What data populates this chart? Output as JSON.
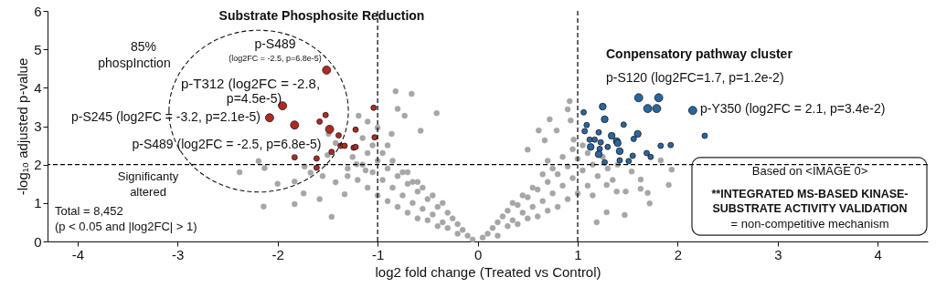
{
  "chart_data": {
    "type": "scatter",
    "xlabel": "log2 fold change (Treated vs Control)",
    "ylabel": "-log₁₀ adjusted p-value",
    "xlim": [
      -4.3,
      4.5
    ],
    "ylim": [
      0,
      6
    ],
    "xticks": [
      -4,
      -3,
      -2,
      -1,
      0,
      1,
      2,
      3,
      4
    ],
    "yticks": [
      0,
      1,
      2,
      3,
      4,
      5,
      6
    ],
    "grid": false,
    "marker": "circle",
    "ref_lines": [
      {
        "axis": "x",
        "value": -1,
        "color": "#000000",
        "line_style": "dashed"
      },
      {
        "axis": "x",
        "value": 1,
        "color": "#000000",
        "line_style": "dashed"
      },
      {
        "axis": "y",
        "value": 2,
        "color": "#000000",
        "line_style": "dashed"
      }
    ],
    "series": [
      {
        "type": "scatter",
        "color": "#a6a6a6",
        "x": [
          -0.82,
          -0.66,
          -0.8,
          -0.41,
          -0.73,
          -1.19,
          -1.1,
          -0.57,
          -1.0,
          -0.86,
          -1.15,
          -2.19,
          -2.38,
          -2.13,
          -2.0,
          -1.83,
          -2.14,
          -1.83,
          -1.74,
          -1.73,
          -1.67,
          -1.58,
          -1.46,
          -1.55,
          -1.5,
          -1.42,
          -1.33,
          -1.3,
          -1.21,
          -1.12,
          -1.49,
          -1.42,
          -0.05,
          -0.1,
          -0.15,
          -0.2,
          -0.2,
          -0.25,
          -0.3,
          -0.3,
          -0.35,
          -0.4,
          -0.4,
          -0.45,
          -0.5,
          -0.5,
          -0.55,
          -0.6,
          -0.6,
          -0.65,
          -0.7,
          -0.7,
          -0.75,
          -0.8,
          -0.8,
          -0.85,
          -0.9,
          -0.9,
          -0.95,
          -1.0,
          -1.0,
          -1.05,
          -1.1,
          -1.1,
          -1.15,
          -1.2,
          -1.25,
          -1.3,
          -0.35,
          -0.55,
          -0.75,
          -0.95,
          -0.85,
          -0.65,
          -0.45,
          -1.05,
          -0.7,
          -0.6,
          -0.9,
          1.29,
          1.47,
          1.19,
          1.29,
          1.91,
          1.72,
          1.63,
          1.94,
          1.7,
          1.39,
          1.54,
          1.63,
          1.48,
          1.83,
          0.92,
          0.72,
          0.93,
          0.61,
          0.79,
          0.5,
          0.67,
          0.9,
          0.96,
          0.05,
          0.1,
          0.15,
          0.2,
          0.2,
          0.25,
          0.3,
          0.3,
          0.35,
          0.4,
          0.4,
          0.45,
          0.5,
          0.5,
          0.55,
          0.6,
          0.6,
          0.65,
          0.7,
          0.7,
          0.75,
          0.8,
          0.8,
          0.85,
          0.9,
          0.9,
          0.95,
          1.0,
          1.0,
          1.05,
          1.1,
          1.1,
          1.15,
          1.2,
          1.25,
          1.3,
          0.35,
          0.55,
          0.75,
          0.95,
          0.85,
          0.65,
          0.45,
          1.05,
          0.7,
          1.15,
          1.35,
          1.4
        ],
        "values": [
          3.91,
          3.84,
          3.45,
          3.34,
          3.27,
          3.27,
          3.12,
          2.88,
          2.96,
          2.8,
          2.69,
          2.09,
          1.8,
          1.91,
          1.5,
          1.56,
          0.91,
          0.97,
          1.25,
          1.95,
          1.79,
          1.1,
          0.64,
          1.7,
          2.25,
          1.54,
          1.23,
          1.7,
          2.01,
          1.85,
          2.8,
          2.56,
          0.05,
          0.15,
          0.3,
          0.2,
          0.45,
          0.6,
          0.35,
          0.75,
          0.5,
          0.9,
          0.4,
          0.7,
          1.1,
          0.55,
          0.85,
          1.3,
          0.6,
          1.0,
          1.5,
          0.75,
          1.2,
          1.7,
          0.9,
          1.4,
          1.9,
          1.05,
          1.6,
          2.1,
          1.2,
          1.8,
          2.3,
          1.4,
          2.0,
          1.6,
          2.2,
          1.9,
          1.0,
          1.4,
          1.8,
          2.3,
          2.1,
          1.55,
          1.2,
          2.5,
          1.8,
          1.55,
          2.5,
          1.47,
          0.69,
          0.5,
          0.76,
          1.47,
          0.99,
          1.37,
          1.87,
          1.26,
          1.3,
          1.82,
          1.61,
          1.3,
          2.11,
          3.65,
          3.18,
          3.15,
          2.89,
          2.89,
          2.39,
          2.63,
          3.44,
          2.65,
          0.1,
          0.2,
          0.35,
          0.15,
          0.5,
          0.65,
          0.4,
          0.8,
          0.55,
          0.95,
          0.45,
          0.75,
          1.15,
          0.6,
          0.9,
          1.35,
          0.65,
          1.05,
          1.55,
          0.8,
          1.25,
          1.75,
          0.9,
          1.45,
          1.95,
          1.1,
          1.65,
          2.15,
          1.25,
          1.85,
          2.3,
          1.45,
          2.0,
          1.7,
          2.2,
          1.9,
          1.0,
          1.4,
          1.9,
          2.4,
          2.2,
          1.75,
          1.2,
          2.5,
          2.1,
          1.2,
          1.6,
          2.0
        ]
      },
      {
        "type": "bubble",
        "color": "#b02a22",
        "x": [
          -1.51,
          -1.95,
          -2.08,
          -1.83,
          -1.48,
          -1.04,
          -1.52,
          -1.58,
          -1.39,
          -1.22,
          -1.03,
          -1.37,
          -1.33,
          -1.24,
          -1.22,
          -1.46,
          -1.83,
          -1.61,
          -1.61
        ],
        "values": [
          4.46,
          3.53,
          3.22,
          3.03,
          2.92,
          3.48,
          3.29,
          3.12,
          2.76,
          2.91,
          2.71,
          2.49,
          2.49,
          2.44,
          2.46,
          2.33,
          2.19,
          2.16,
          1.92
        ],
        "sizes": [
          1,
          1,
          1,
          1,
          1,
          0.45,
          0.45,
          0.45,
          0.45,
          0.45,
          0.45,
          0.45,
          0.45,
          0.45,
          0.45,
          0.45,
          0.45,
          0.45,
          0.45
        ]
      },
      {
        "type": "bubble",
        "color": "#2a66a0",
        "x": [
          1.61,
          1.81,
          1.7,
          1.79,
          2.15,
          1.27,
          1.25,
          1.06,
          1.09,
          1.07,
          1.21,
          1.46,
          1.6,
          1.34,
          1.12,
          1.17,
          1.23,
          1.39,
          1.4,
          1.56,
          1.13,
          1.3,
          1.22,
          1.42,
          1.21,
          1.83,
          1.93,
          2.27,
          1.55,
          1.69,
          1.73,
          1.42,
          1.51,
          1.27
        ],
        "values": [
          3.74,
          3.74,
          3.46,
          3.46,
          3.41,
          3.18,
          3.51,
          3.36,
          3.03,
          2.87,
          2.84,
          3.04,
          2.8,
          2.75,
          2.65,
          2.65,
          2.58,
          2.61,
          2.56,
          2.67,
          2.46,
          2.46,
          2.41,
          2.35,
          2.27,
          2.49,
          2.51,
          2.75,
          2.23,
          2.3,
          2.2,
          2.11,
          2.09,
          2.06
        ],
        "sizes": [
          1,
          1,
          1,
          1,
          1,
          0.7,
          0.7,
          0.45,
          0.45,
          0.45,
          0.45,
          0.45,
          0.7,
          0.7,
          0.45,
          0.45,
          0.45,
          0.7,
          0.7,
          0.45,
          0.7,
          0.45,
          0.45,
          0.7,
          0.7,
          0.45,
          0.45,
          0.45,
          0.45,
          0.45,
          0.45,
          0.45,
          0.45,
          0.45
        ]
      }
    ],
    "annotations": [
      "Substrate Phosphosite Reduction",
      "85%",
      "phospInction",
      "p-S489",
      "(log2FC = -2.5, p=6.8e-5)",
      "p-T312 (log2FC = -2.8,",
      "p=4.5e-5)",
      "p-S245 (log2FC = -3.2, p=2.1e-5)",
      "p-S489 (log2FC = -2.5, p=6.8e-5)",
      "Significanty",
      "altered",
      "Total = 8,452",
      "(p < 0.05 and |log2FC| > 1)",
      "Conpensatory pathway cluster",
      "p-S120 (log2FC=1.7, p=1.2e-2)",
      "p-Y350 (log2FC = 2.1, p=3.4e-2)",
      "Based on <IMAGE 0>",
      "**INTEGRATED MS-BASED KINASE-",
      "SUBSTRATE ACTIVITY VALIDATION",
      "= non-competitive mechanism"
    ]
  }
}
